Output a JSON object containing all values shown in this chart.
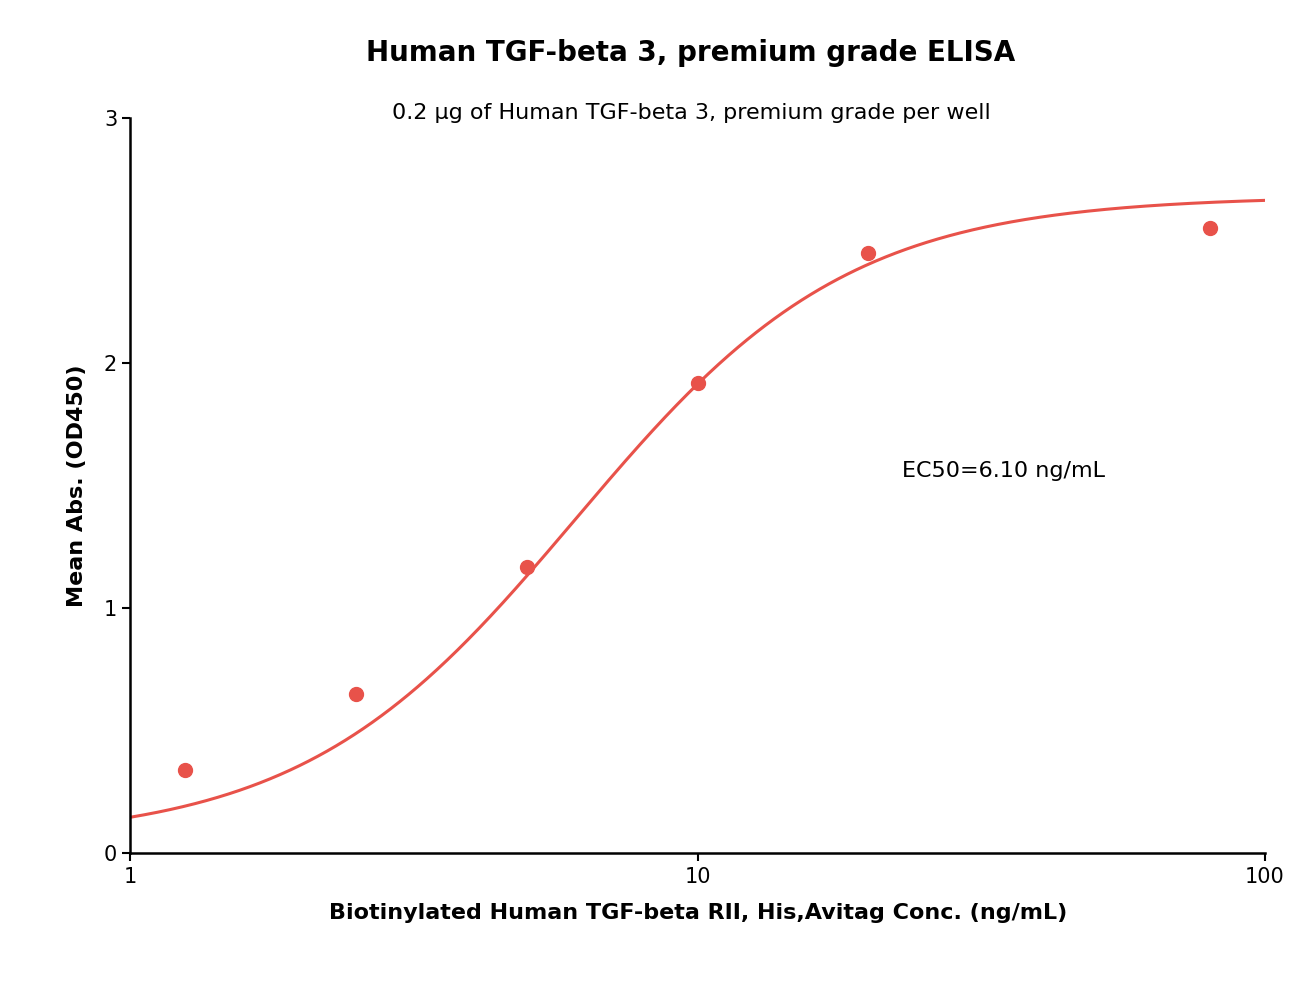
{
  "title": "Human TGF-beta 3, premium grade ELISA",
  "subtitle": "0.2 μg of Human TGF-beta 3, premium grade per well",
  "xlabel": "Biotinylated Human TGF-beta RII, His,Avitag Conc. (ng/mL)",
  "ylabel": "Mean Abs. (OD450)",
  "ec50_text": "EC50=6.10 ng/mL",
  "data_x": [
    1.25,
    2.5,
    5.0,
    10.0,
    20.0,
    80.0
  ],
  "data_y": [
    0.34,
    0.65,
    1.17,
    1.92,
    2.45,
    2.55
  ],
  "point_color": "#E8524A",
  "line_color": "#E8524A",
  "xlim_log": [
    0.0,
    2.0
  ],
  "ylim": [
    0,
    3.0
  ],
  "yticks": [
    0,
    1,
    2,
    3
  ],
  "xticks": [
    1,
    10,
    100
  ],
  "xticklabels": [
    "1",
    "10",
    "100"
  ],
  "background_color": "#ffffff",
  "title_fontsize": 20,
  "subtitle_fontsize": 16,
  "axis_label_fontsize": 16,
  "tick_fontsize": 15,
  "ec50_fontsize": 16,
  "point_size": 100,
  "line_width": 2.2,
  "ec50_fixed": 6.1,
  "hill_fixed": 1.8,
  "bottom_fixed": 0.05,
  "top_fixed": 2.68
}
